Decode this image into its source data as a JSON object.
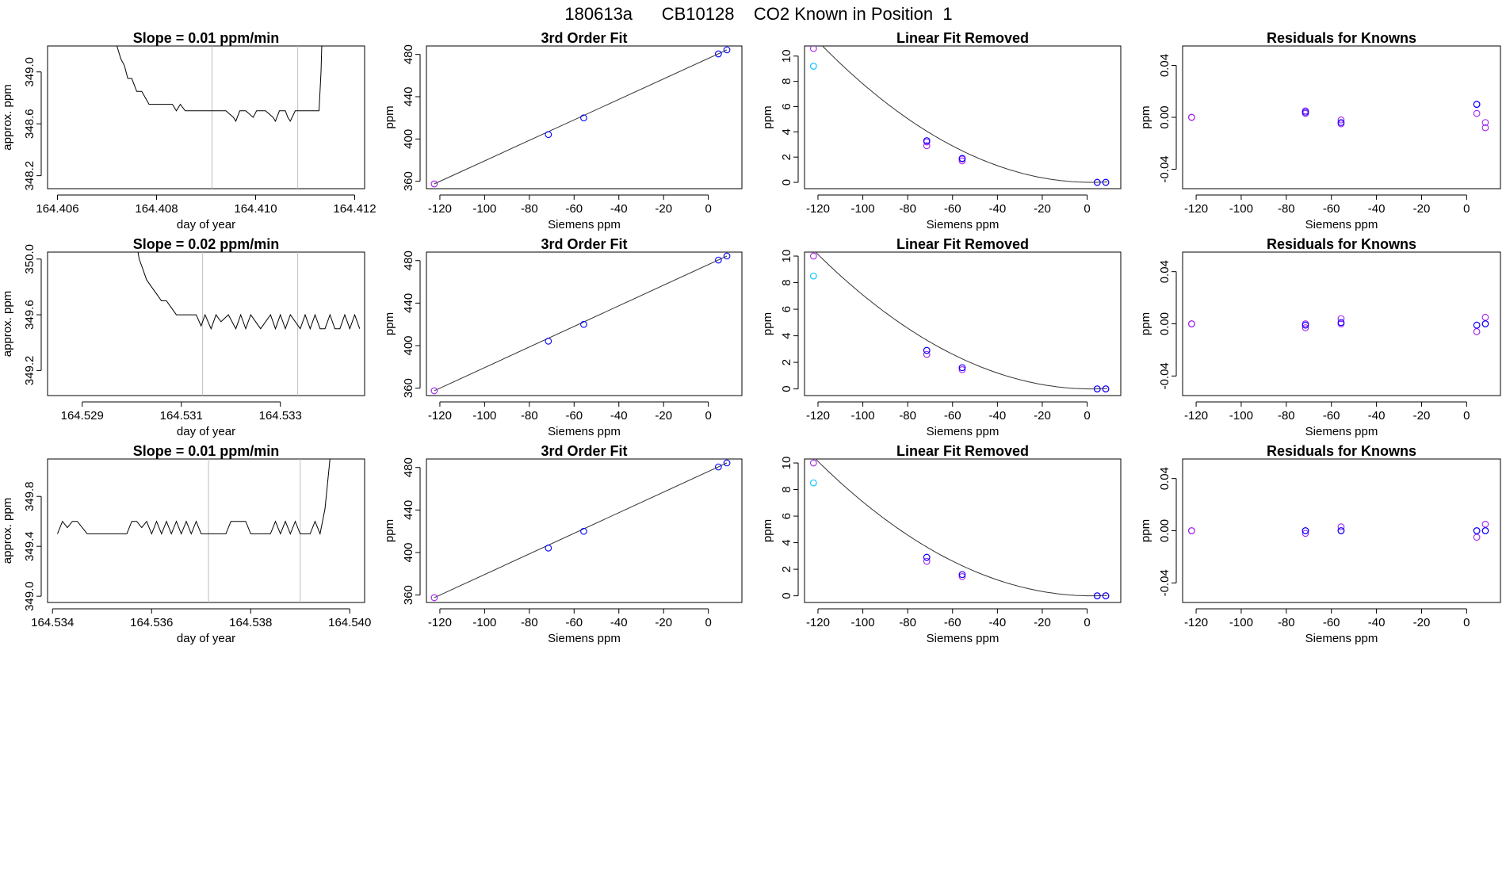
{
  "page_title": "180613a      CB10128    CO2 Known in Position  1",
  "colors": {
    "line": "#000000",
    "vline": "#bebebe",
    "fit_curve": "#333333",
    "point_purple": "#a020f0",
    "point_blue": "#0000ff",
    "point_cyan": "#00bfff",
    "point_violet": "#d070e0"
  },
  "chart_data": [
    {
      "type": "line",
      "title": "Slope =  0.01  ppm/min",
      "xlabel": "day of year",
      "ylabel": "approx. ppm",
      "xlim": [
        164.4058,
        164.4122
      ],
      "ylim": [
        348.1,
        349.2
      ],
      "xticks": [
        164.406,
        164.408,
        164.41,
        164.412
      ],
      "xtick_labels": [
        "164.406",
        "164.408",
        "164.410",
        "164.412"
      ],
      "yticks": [
        348.2,
        348.6,
        349.0
      ],
      "ytick_labels": [
        "348.2",
        "348.6",
        "349.0"
      ],
      "vlines": [
        164.40912,
        164.41085
      ],
      "x": [
        164.40715,
        164.4072,
        164.40728,
        164.40735,
        164.40742,
        164.4075,
        164.4076,
        164.4077,
        164.40785,
        164.4081,
        164.40832,
        164.4084,
        164.40848,
        164.40858,
        164.4094,
        164.40955,
        164.4096,
        164.40968,
        164.4098,
        164.40995,
        164.41002,
        164.4102,
        164.41035,
        164.4104,
        164.41048,
        164.4106,
        164.41065,
        164.4107,
        164.4108,
        164.411,
        164.4112,
        164.41128,
        164.41132,
        164.41135
      ],
      "y": [
        349.25,
        349.2,
        349.1,
        349.05,
        348.95,
        348.95,
        348.85,
        348.85,
        348.75,
        348.75,
        348.75,
        348.7,
        348.75,
        348.7,
        348.7,
        348.65,
        348.62,
        348.7,
        348.7,
        348.65,
        348.7,
        348.7,
        348.65,
        348.62,
        348.7,
        348.7,
        348.65,
        348.62,
        348.7,
        348.7,
        348.7,
        348.7,
        349.0,
        349.4
      ]
    },
    {
      "type": "scatter",
      "title": "3rd Order Fit",
      "xlabel": "Siemens ppm",
      "ylabel": "ppm",
      "xlim": [
        -126,
        15
      ],
      "ylim": [
        353,
        488
      ],
      "xticks": [
        -120,
        -100,
        -80,
        -60,
        -40,
        -20,
        0
      ],
      "xtick_labels": [
        "-120",
        "-100",
        "-80",
        "-60",
        "-40",
        "-20",
        "0"
      ],
      "yticks": [
        360,
        400,
        440,
        480
      ],
      "ytick_labels": [
        "360",
        "400",
        "440",
        "480"
      ],
      "series": [
        {
          "color": "blue",
          "x": [
            -71.5,
            -55.7,
            4.5,
            8.3
          ],
          "y": [
            404.2,
            420,
            480.5,
            484.3
          ]
        },
        {
          "color": "purple",
          "x": [
            -122.5
          ],
          "y": [
            357.5
          ]
        }
      ],
      "fit_line": {
        "x": [
          -122.5,
          8.3
        ],
        "y": [
          357.5,
          484.3
        ]
      }
    },
    {
      "type": "scatter",
      "title": "Linear Fit Removed",
      "xlabel": "Siemens ppm",
      "ylabel": "ppm",
      "xlim": [
        -126,
        15
      ],
      "ylim": [
        -0.5,
        10.8
      ],
      "xticks": [
        -120,
        -100,
        -80,
        -60,
        -40,
        -20,
        0
      ],
      "xtick_labels": [
        "-120",
        "-100",
        "-80",
        "-60",
        "-40",
        "-20",
        "0"
      ],
      "yticks": [
        0,
        2,
        4,
        6,
        8,
        10
      ],
      "ytick_labels": [
        "0",
        "2",
        "4",
        "6",
        "8",
        "10"
      ],
      "fit_curve": {
        "a": 0.00075,
        "vertex": 2
      },
      "series": [
        {
          "color": "purple",
          "x": [
            -122,
            -71.5,
            -71.5,
            -55.7,
            -55.7,
            4.5,
            8.3
          ],
          "y": [
            10.6,
            3.2,
            2.9,
            1.85,
            1.7,
            0,
            0
          ]
        },
        {
          "color": "cyan",
          "x": [
            -122
          ],
          "y": [
            9.2
          ]
        },
        {
          "color": "blue",
          "x": [
            -71.5,
            -55.7,
            4.5,
            8.3
          ],
          "y": [
            3.3,
            1.9,
            0,
            0
          ]
        }
      ]
    },
    {
      "type": "scatter",
      "title": "Residuals for Knowns",
      "xlabel": "Siemens ppm",
      "ylabel": "ppm",
      "xlim": [
        -126,
        15
      ],
      "ylim": [
        -0.055,
        0.055
      ],
      "xticks": [
        -120,
        -100,
        -80,
        -60,
        -40,
        -20,
        0
      ],
      "xtick_labels": [
        "-120",
        "-100",
        "-80",
        "-60",
        "-40",
        "-20",
        "0"
      ],
      "yticks": [
        -0.04,
        0,
        0.04
      ],
      "ytick_labels": [
        "-0.04",
        "0.00",
        "0.04"
      ],
      "series": [
        {
          "color": "purple",
          "x": [
            -122,
            -122,
            -71.5,
            -71.5,
            -55.7,
            -55.7,
            4.5,
            4.5,
            8.3,
            8.3
          ],
          "y": [
            0.0,
            0.0,
            0.003,
            0.005,
            -0.002,
            -0.005,
            0.01,
            0.003,
            -0.004,
            -0.008
          ]
        },
        {
          "color": "blue",
          "x": [
            -71.5,
            -55.7,
            4.5
          ],
          "y": [
            0.004,
            -0.004,
            0.01
          ]
        }
      ]
    },
    {
      "type": "line",
      "title": "Slope =  0.02  ppm/min",
      "xlabel": "day of year",
      "ylabel": "approx. ppm",
      "xlim": [
        164.5283,
        164.5347
      ],
      "ylim": [
        349.02,
        350.05
      ],
      "xticks": [
        164.529,
        164.531,
        164.533
      ],
      "xtick_labels": [
        "164.529",
        "164.531",
        "164.533"
      ],
      "yticks": [
        349.2,
        349.6,
        350.0
      ],
      "ytick_labels": [
        "349.2",
        "349.6",
        "350.0"
      ],
      "vlines": [
        164.53143,
        164.53335
      ],
      "x": [
        164.5301,
        164.53015,
        164.5302,
        164.5303,
        164.5304,
        164.5305,
        164.5306,
        164.5307,
        164.5309,
        164.53115,
        164.5313,
        164.5314,
        164.53148,
        164.5316,
        164.5317,
        164.5318,
        164.53195,
        164.5321,
        164.5322,
        164.5323,
        164.5324,
        164.5326,
        164.5328,
        164.5329,
        164.533,
        164.5331,
        164.5332,
        164.5334,
        164.5335,
        164.5336,
        164.5337,
        164.5338,
        164.5339,
        164.534,
        164.5341,
        164.5342,
        164.5343,
        164.5344,
        164.5345,
        164.5346
      ],
      "y": [
        350.1,
        350.0,
        349.95,
        349.85,
        349.8,
        349.75,
        349.7,
        349.7,
        349.6,
        349.6,
        349.6,
        349.52,
        349.6,
        349.5,
        349.6,
        349.55,
        349.6,
        349.5,
        349.6,
        349.5,
        349.6,
        349.5,
        349.6,
        349.5,
        349.6,
        349.5,
        349.6,
        349.5,
        349.6,
        349.5,
        349.6,
        349.5,
        349.5,
        349.6,
        349.5,
        349.5,
        349.6,
        349.5,
        349.6,
        349.5
      ]
    },
    {
      "type": "scatter",
      "title": "3rd Order Fit",
      "xlabel": "Siemens ppm",
      "ylabel": "ppm",
      "xlim": [
        -126,
        15
      ],
      "ylim": [
        353,
        488
      ],
      "xticks": [
        -120,
        -100,
        -80,
        -60,
        -40,
        -20,
        0
      ],
      "xtick_labels": [
        "-120",
        "-100",
        "-80",
        "-60",
        "-40",
        "-20",
        "0"
      ],
      "yticks": [
        360,
        400,
        440,
        480
      ],
      "ytick_labels": [
        "360",
        "400",
        "440",
        "480"
      ],
      "series": [
        {
          "color": "blue",
          "x": [
            -71.5,
            -55.7,
            4.5,
            8.3
          ],
          "y": [
            404.2,
            420,
            480.5,
            484.3
          ]
        },
        {
          "color": "purple",
          "x": [
            -122.5
          ],
          "y": [
            357.5
          ]
        }
      ],
      "fit_line": {
        "x": [
          -122.5,
          8.3
        ],
        "y": [
          357.5,
          484.3
        ]
      }
    },
    {
      "type": "scatter",
      "title": "Linear Fit Removed",
      "xlabel": "Siemens ppm",
      "ylabel": "ppm",
      "xlim": [
        -126,
        15
      ],
      "ylim": [
        -0.5,
        10.3
      ],
      "xticks": [
        -120,
        -100,
        -80,
        -60,
        -40,
        -20,
        0
      ],
      "xtick_labels": [
        "-120",
        "-100",
        "-80",
        "-60",
        "-40",
        "-20",
        "0"
      ],
      "yticks": [
        0,
        2,
        4,
        6,
        8,
        10
      ],
      "ytick_labels": [
        "0",
        "2",
        "4",
        "6",
        "8",
        "10"
      ],
      "fit_curve": {
        "a": 0.00068,
        "vertex": 2
      },
      "series": [
        {
          "color": "purple",
          "x": [
            -122,
            -71.5,
            -71.5,
            -55.7,
            -55.7,
            4.5,
            8.3
          ],
          "y": [
            10.0,
            2.9,
            2.6,
            1.6,
            1.45,
            0,
            0
          ]
        },
        {
          "color": "cyan",
          "x": [
            -122
          ],
          "y": [
            8.5
          ]
        },
        {
          "color": "blue",
          "x": [
            -71.5,
            -55.7,
            4.5,
            8.3
          ],
          "y": [
            2.9,
            1.6,
            0,
            0
          ]
        }
      ]
    },
    {
      "type": "scatter",
      "title": "Residuals for Knowns",
      "xlabel": "Siemens ppm",
      "ylabel": "ppm",
      "xlim": [
        -126,
        15
      ],
      "ylim": [
        -0.055,
        0.055
      ],
      "xticks": [
        -120,
        -100,
        -80,
        -60,
        -40,
        -20,
        0
      ],
      "xtick_labels": [
        "-120",
        "-100",
        "-80",
        "-60",
        "-40",
        "-20",
        "0"
      ],
      "yticks": [
        -0.04,
        0,
        0.04
      ],
      "ytick_labels": [
        "-0.04",
        "0.00",
        "0.04"
      ],
      "series": [
        {
          "color": "purple",
          "x": [
            -122,
            -122,
            -71.5,
            -71.5,
            -55.7,
            -55.7,
            4.5,
            4.5,
            8.3,
            8.3
          ],
          "y": [
            0.0,
            0.0,
            -0.003,
            0.0,
            0.004,
            0.0,
            -0.006,
            -0.001,
            0.005,
            0.0
          ]
        },
        {
          "color": "blue",
          "x": [
            -71.5,
            -55.7,
            4.5,
            8.3
          ],
          "y": [
            -0.001,
            0.001,
            -0.001,
            0.0
          ]
        }
      ]
    },
    {
      "type": "line",
      "title": "Slope =  0.01  ppm/min",
      "xlabel": "day of year",
      "ylabel": "approx. ppm",
      "xlim": [
        164.5339,
        164.5403
      ],
      "ylim": [
        348.95,
        350.1
      ],
      "xticks": [
        164.534,
        164.536,
        164.538,
        164.54
      ],
      "xtick_labels": [
        "164.534",
        "164.536",
        "164.538",
        "164.540"
      ],
      "yticks": [
        349.0,
        349.4,
        349.8
      ],
      "ytick_labels": [
        "349.0",
        "349.4",
        "349.8"
      ],
      "vlines": [
        164.53715,
        164.539
      ],
      "x": [
        164.5341,
        164.5342,
        164.5343,
        164.5344,
        164.5345,
        164.5346,
        164.5347,
        164.5352,
        164.5355,
        164.5356,
        164.5357,
        164.5358,
        164.5359,
        164.536,
        164.5361,
        164.5362,
        164.5363,
        164.5364,
        164.5365,
        164.5366,
        164.5367,
        164.5368,
        164.5369,
        164.537,
        164.5375,
        164.5376,
        164.5379,
        164.538,
        164.5383,
        164.5384,
        164.5385,
        164.5386,
        164.5387,
        164.5388,
        164.5389,
        164.539,
        164.5392,
        164.5393,
        164.5394,
        164.5395,
        164.5396
      ],
      "y": [
        349.5,
        349.6,
        349.55,
        349.6,
        349.6,
        349.55,
        349.5,
        349.5,
        349.5,
        349.6,
        349.6,
        349.55,
        349.6,
        349.5,
        349.6,
        349.5,
        349.6,
        349.5,
        349.6,
        349.5,
        349.6,
        349.5,
        349.6,
        349.5,
        349.5,
        349.6,
        349.6,
        349.5,
        349.5,
        349.5,
        349.6,
        349.5,
        349.6,
        349.5,
        349.6,
        349.5,
        349.5,
        349.6,
        349.5,
        349.7,
        350.1
      ]
    },
    {
      "type": "scatter",
      "title": "3rd Order Fit",
      "xlabel": "Siemens ppm",
      "ylabel": "ppm",
      "xlim": [
        -126,
        15
      ],
      "ylim": [
        353,
        488
      ],
      "xticks": [
        -120,
        -100,
        -80,
        -60,
        -40,
        -20,
        0
      ],
      "xtick_labels": [
        "-120",
        "-100",
        "-80",
        "-60",
        "-40",
        "-20",
        "0"
      ],
      "yticks": [
        360,
        400,
        440,
        480
      ],
      "ytick_labels": [
        "360",
        "400",
        "440",
        "480"
      ],
      "series": [
        {
          "color": "blue",
          "x": [
            -71.5,
            -55.7,
            4.5,
            8.3
          ],
          "y": [
            404.2,
            420,
            480.5,
            484.3
          ]
        },
        {
          "color": "purple",
          "x": [
            -122.5
          ],
          "y": [
            357.5
          ]
        }
      ],
      "fit_line": {
        "x": [
          -122.5,
          8.3
        ],
        "y": [
          357.5,
          484.3
        ]
      }
    },
    {
      "type": "scatter",
      "title": "Linear Fit Removed",
      "xlabel": "Siemens ppm",
      "ylabel": "ppm",
      "xlim": [
        -126,
        15
      ],
      "ylim": [
        -0.5,
        10.3
      ],
      "xticks": [
        -120,
        -100,
        -80,
        -60,
        -40,
        -20,
        0
      ],
      "xtick_labels": [
        "-120",
        "-100",
        "-80",
        "-60",
        "-40",
        "-20",
        "0"
      ],
      "yticks": [
        0,
        2,
        4,
        6,
        8,
        10
      ],
      "ytick_labels": [
        "0",
        "2",
        "4",
        "6",
        "8",
        "10"
      ],
      "fit_curve": {
        "a": 0.00068,
        "vertex": 2
      },
      "series": [
        {
          "color": "purple",
          "x": [
            -122,
            -71.5,
            -71.5,
            -55.7,
            -55.7,
            4.5,
            8.3
          ],
          "y": [
            10.0,
            2.9,
            2.6,
            1.6,
            1.45,
            0,
            0
          ]
        },
        {
          "color": "cyan",
          "x": [
            -122
          ],
          "y": [
            8.5
          ]
        },
        {
          "color": "blue",
          "x": [
            -71.5,
            -55.7,
            4.5,
            8.3
          ],
          "y": [
            2.9,
            1.6,
            0,
            0
          ]
        }
      ]
    },
    {
      "type": "scatter",
      "title": "Residuals for Knowns",
      "xlabel": "Siemens ppm",
      "ylabel": "ppm",
      "xlim": [
        -126,
        15
      ],
      "ylim": [
        -0.055,
        0.055
      ],
      "xticks": [
        -120,
        -100,
        -80,
        -60,
        -40,
        -20,
        0
      ],
      "xtick_labels": [
        "-120",
        "-100",
        "-80",
        "-60",
        "-40",
        "-20",
        "0"
      ],
      "yticks": [
        -0.04,
        0,
        0.04
      ],
      "ytick_labels": [
        "-0.04",
        "0.00",
        "0.04"
      ],
      "series": [
        {
          "color": "purple",
          "x": [
            -122,
            -122,
            -71.5,
            -71.5,
            -55.7,
            -55.7,
            4.5,
            4.5,
            8.3,
            8.3
          ],
          "y": [
            0.0,
            0.0,
            -0.002,
            0.0,
            0.003,
            0.0,
            -0.005,
            0.0,
            0.005,
            0.0
          ]
        },
        {
          "color": "blue",
          "x": [
            -71.5,
            -55.7,
            4.5,
            8.3
          ],
          "y": [
            0.0,
            0.0,
            0.0,
            0.0
          ]
        }
      ]
    }
  ]
}
